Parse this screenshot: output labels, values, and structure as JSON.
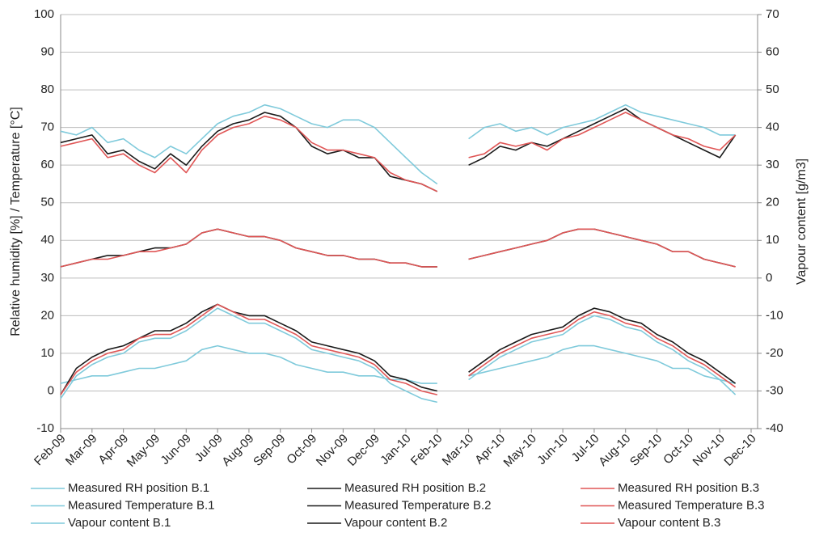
{
  "chart_data": {
    "type": "line",
    "y_label": "Relative humidity [%] / Temperature [°C]",
    "y2_label": "Vapour content [g/m3]",
    "categories": [
      "Feb-09",
      null,
      "Mar-09",
      null,
      "Apr-09",
      null,
      "May-09",
      null,
      "Jun-09",
      null,
      "Jul-09",
      null,
      "Aug-09",
      null,
      "Sep-09",
      null,
      "Oct-09",
      null,
      "Nov-09",
      null,
      "Dec-09",
      null,
      "Jan-10",
      null,
      "Feb-10",
      null,
      "Mar-10",
      null,
      "Apr-10",
      null,
      "May-10",
      null,
      "Jun-10",
      null,
      "Jul-10",
      null,
      "Aug-10",
      null,
      "Sep-10",
      null,
      "Oct-10",
      null,
      "Nov-10",
      null,
      "Dec-10"
    ],
    "ylim": [
      -10,
      100
    ],
    "yticks": [
      -10,
      0,
      10,
      20,
      30,
      40,
      50,
      60,
      70,
      80,
      90,
      100
    ],
    "y2lim": [
      -40,
      70
    ],
    "y2ticks": [
      -40,
      -30,
      -20,
      -10,
      0,
      10,
      20,
      30,
      40,
      50,
      60,
      70
    ],
    "grid": true,
    "series": [
      {
        "name": "Measured RH position B.1",
        "color": "#7fcadb",
        "values": [
          69,
          68,
          70,
          66,
          67,
          64,
          62,
          65,
          63,
          67,
          71,
          73,
          74,
          76,
          75,
          73,
          71,
          70,
          72,
          72,
          70,
          66,
          62,
          58,
          55,
          null,
          67,
          70,
          71,
          69,
          70,
          68,
          70,
          71,
          72,
          74,
          76,
          74,
          73,
          72,
          71,
          70,
          68,
          68,
          null
        ]
      },
      {
        "name": "Measured RH position B.2",
        "color": "#1a1a1a",
        "values": [
          66,
          67,
          68,
          63,
          64,
          61,
          59,
          63,
          60,
          65,
          69,
          71,
          72,
          74,
          73,
          70,
          65,
          63,
          64,
          62,
          62,
          57,
          56,
          55,
          53,
          null,
          60,
          62,
          65,
          64,
          66,
          65,
          67,
          69,
          71,
          73,
          75,
          72,
          70,
          68,
          66,
          64,
          62,
          68,
          null
        ]
      },
      {
        "name": "Measured RH position B.3",
        "color": "#e05656",
        "values": [
          65,
          66,
          67,
          62,
          63,
          60,
          58,
          62,
          58,
          64,
          68,
          70,
          71,
          73,
          72,
          70,
          66,
          64,
          64,
          63,
          62,
          58,
          56,
          55,
          53,
          null,
          62,
          63,
          66,
          65,
          66,
          64,
          67,
          68,
          70,
          72,
          74,
          72,
          70,
          68,
          67,
          65,
          64,
          68,
          null
        ]
      },
      {
        "name": "Measured Temperature B.1",
        "color": "#7fcadb",
        "values": [
          -2,
          4,
          7,
          9,
          10,
          13,
          14,
          14,
          16,
          19,
          22,
          20,
          18,
          18,
          16,
          14,
          11,
          10,
          9,
          8,
          6,
          2,
          0,
          -2,
          -3,
          null,
          3,
          6,
          9,
          11,
          13,
          14,
          15,
          18,
          20,
          19,
          17,
          16,
          13,
          11,
          8,
          6,
          3,
          -1,
          null
        ]
      },
      {
        "name": "Measured Temperature B.2",
        "color": "#1a1a1a",
        "values": [
          -1,
          6,
          9,
          11,
          12,
          14,
          16,
          16,
          18,
          21,
          23,
          21,
          20,
          20,
          18,
          16,
          13,
          12,
          11,
          10,
          8,
          4,
          3,
          1,
          0,
          null,
          5,
          8,
          11,
          13,
          15,
          16,
          17,
          20,
          22,
          21,
          19,
          18,
          15,
          13,
          10,
          8,
          5,
          2,
          null
        ]
      },
      {
        "name": "Measured Temperature B.3",
        "color": "#e05656",
        "values": [
          -1,
          5,
          8,
          10,
          11,
          14,
          15,
          15,
          17,
          20,
          23,
          21,
          19,
          19,
          17,
          15,
          12,
          11,
          10,
          9,
          7,
          3,
          2,
          0,
          -1,
          null,
          4,
          7,
          10,
          12,
          14,
          15,
          16,
          19,
          21,
          20,
          18,
          17,
          14,
          12,
          9,
          7,
          4,
          1,
          null
        ]
      },
      {
        "name": "Vapour content B.1",
        "color": "#7fcadb",
        "values": [
          2,
          3,
          4,
          4,
          5,
          6,
          6,
          7,
          8,
          11,
          12,
          11,
          10,
          10,
          9,
          7,
          6,
          5,
          5,
          4,
          4,
          3,
          3,
          2,
          2,
          null,
          4,
          5,
          6,
          7,
          8,
          9,
          11,
          12,
          12,
          11,
          10,
          9,
          8,
          6,
          6,
          4,
          3,
          2,
          null
        ]
      },
      {
        "name": "Vapour content B.2",
        "color": "#1a1a1a",
        "values": [
          3,
          4,
          5,
          6,
          6,
          7,
          8,
          8,
          9,
          12,
          13,
          12,
          11,
          11,
          10,
          8,
          7,
          6,
          6,
          5,
          5,
          4,
          4,
          3,
          3,
          null,
          5,
          6,
          7,
          8,
          9,
          10,
          12,
          13,
          13,
          12,
          11,
          10,
          9,
          7,
          7,
          5,
          4,
          3,
          null
        ],
        "axis": "y2"
      },
      {
        "name": "Vapour content B.3",
        "color": "#e05656",
        "values": [
          3,
          4,
          5,
          5,
          6,
          7,
          7,
          8,
          9,
          12,
          13,
          12,
          11,
          11,
          10,
          8,
          7,
          6,
          6,
          5,
          5,
          4,
          4,
          3,
          3,
          null,
          5,
          6,
          7,
          8,
          9,
          10,
          12,
          13,
          13,
          12,
          11,
          10,
          9,
          7,
          7,
          5,
          4,
          3,
          null
        ],
        "axis": "y2"
      }
    ]
  }
}
